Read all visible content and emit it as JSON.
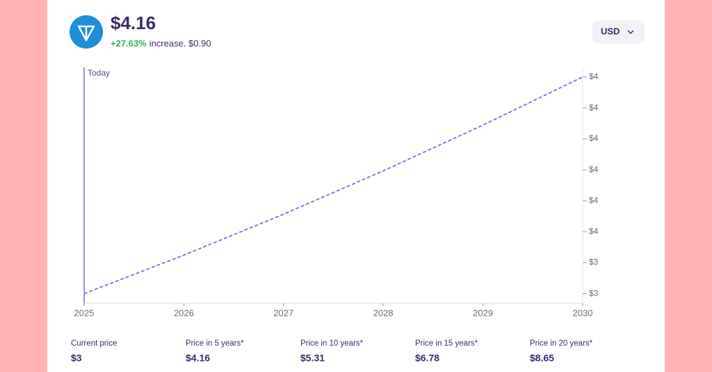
{
  "header": {
    "price": "$4.16",
    "change": "+27.63%",
    "change_text": "increase. $0.90",
    "currency": "USD"
  },
  "chart_data": {
    "type": "line",
    "x": [
      2025,
      2026,
      2027,
      2028,
      2029,
      2030
    ],
    "xlim": [
      2025,
      2030
    ],
    "xticks": [
      2025,
      2026,
      2027,
      2028,
      2029,
      2030
    ],
    "series": [
      {
        "color": "#8a63e0",
        "values": [
          3.26,
          3.42,
          3.59,
          3.77,
          3.96,
          4.16
        ]
      }
    ],
    "ylim": [
      3.22,
      4.2
    ],
    "yticks": [
      {
        "value": 3.26,
        "label": "$3"
      },
      {
        "value": 3.389,
        "label": "$3"
      },
      {
        "value": 3.517,
        "label": "$4"
      },
      {
        "value": 3.646,
        "label": "$4"
      },
      {
        "value": 3.774,
        "label": "$4"
      },
      {
        "value": 3.903,
        "label": "$4"
      },
      {
        "value": 4.031,
        "label": "$4"
      },
      {
        "value": 4.16,
        "label": "$4"
      }
    ],
    "annotation": {
      "x": 2025,
      "text": "Today"
    }
  },
  "stats": [
    {
      "label": "Current price",
      "value": "$3"
    },
    {
      "label": "Price in 5 years*",
      "value": "$4.16"
    },
    {
      "label": "Price in 10 years*",
      "value": "$5.31"
    },
    {
      "label": "Price in 15 years*",
      "value": "$6.78"
    },
    {
      "label": "Price in 20 years*",
      "value": "$8.65"
    }
  ]
}
